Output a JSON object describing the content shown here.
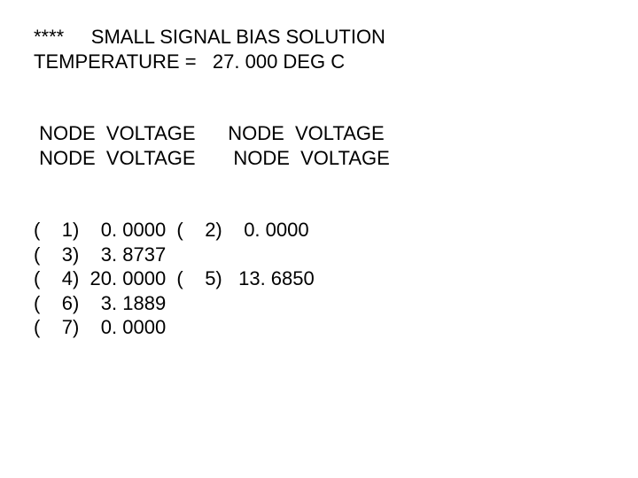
{
  "header": {
    "line1": "****     SMALL SIGNAL BIAS SOLUTION",
    "line2": "TEMPERATURE =   27. 000 DEG C"
  },
  "columns": {
    "line1": " NODE  VOLTAGE      NODE  VOLTAGE",
    "line2": " NODE  VOLTAGE       NODE  VOLTAGE"
  },
  "rows": {
    "r1": "(    1)    0. 0000  (    2)    0. 0000",
    "r2": "(    3)    3. 8737",
    "r3": "(    4)  20. 0000  (    5)   13. 6850",
    "r4": "(    6)    3. 1889",
    "r5": "(    7)    0. 0000"
  }
}
